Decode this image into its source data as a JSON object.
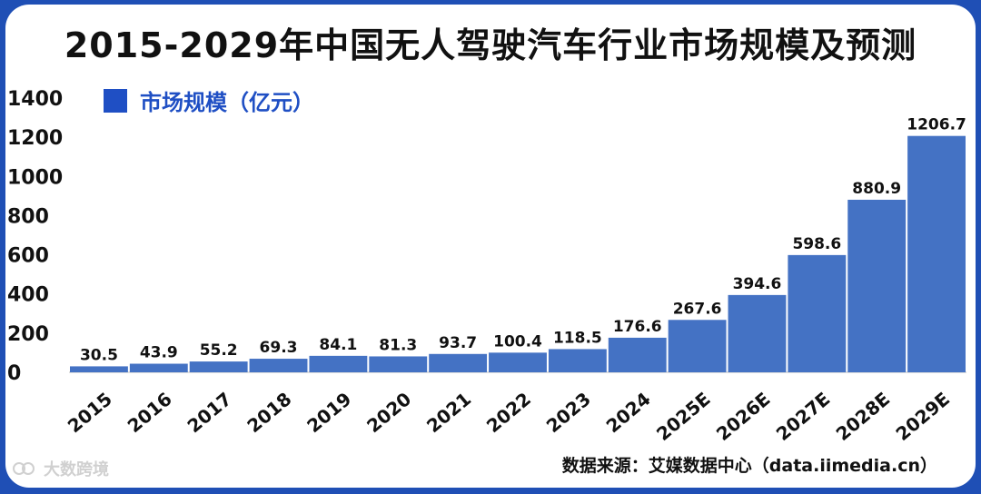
{
  "chart_data": {
    "type": "bar",
    "title": "2015-2029年中国无人驾驶汽车行业市场规模及预测",
    "categories": [
      "2015",
      "2016",
      "2017",
      "2018",
      "2019",
      "2020",
      "2021",
      "2022",
      "2023",
      "2024",
      "2025E",
      "2026E",
      "2027E",
      "2028E",
      "2029E"
    ],
    "series": [
      {
        "name": "市场规模（亿元）",
        "values": [
          30.5,
          43.9,
          55.2,
          69.3,
          84.1,
          81.3,
          93.7,
          100.4,
          118.5,
          176.6,
          267.6,
          394.6,
          598.6,
          880.9,
          1206.7
        ],
        "labels": [
          "30.5",
          "43.9",
          "55.2",
          "69.3",
          "84.1",
          "81.3",
          "93.7",
          "100.4",
          "118.5",
          "176.6",
          "267.6",
          "394.6",
          "598.6",
          "880.9",
          "1206.7"
        ]
      }
    ],
    "yticks": [
      "0",
      "200",
      "400",
      "600",
      "800",
      "1000",
      "1200",
      "1400"
    ],
    "ylim": [
      0,
      1400
    ],
    "grid": false,
    "legend_position": "top-left",
    "bar_color": "#4472c4",
    "legend_color": "#1f4fc4"
  },
  "source": "数据来源：艾媒数据中心（data.iimedia.cn）",
  "watermark": "大数跨境",
  "colors": {
    "frame": "#1f4fb5",
    "background": "#ffffff"
  }
}
